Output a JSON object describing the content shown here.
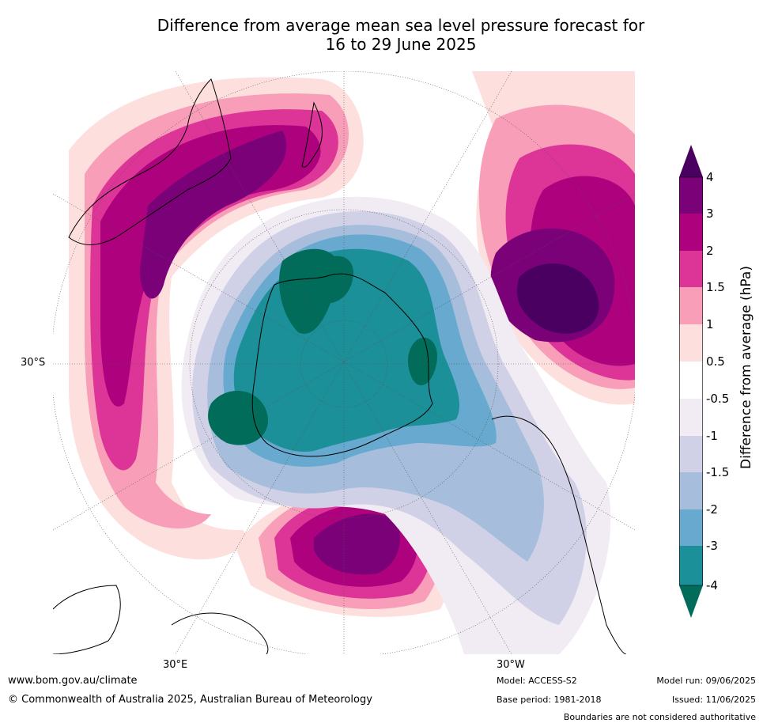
{
  "title": {
    "line1": "Difference from average mean sea level pressure forecast for",
    "line2": "16 to 29 June 2025"
  },
  "map": {
    "projection": "south polar stereographic",
    "labels": {
      "lat": "30°S",
      "lon_left": "30°E",
      "lon_right": "30°W"
    }
  },
  "legend": {
    "axis_title": "Difference from average (hPa)",
    "ticks": [
      "4",
      "3",
      "2",
      "1.5",
      "1",
      "0.5",
      "-0.5",
      "-1",
      "-1.5",
      "-2",
      "-3",
      "-4"
    ],
    "colors": {
      "gt4": "#4a0061",
      "3_4": "#7a0177",
      "2_3": "#ae017e",
      "1.5_2": "#dd3497",
      "1_1.5": "#f89eb9",
      "0.5_1": "#fde0dd",
      "neutral": "#ffffff",
      "m1_m0.5": "#f1ecf3",
      "m1.5_m1": "#d0d1e6",
      "m2_m1.5": "#a6bddb",
      "m3_m2": "#67a9cf",
      "m4_m3": "#1c9099",
      "lt_m4": "#016c59"
    }
  },
  "footer": {
    "website": "www.bom.gov.au/climate",
    "copyright": "© Commonwealth of Australia 2025, Australian Bureau of Meteorology",
    "model": "Model: ACCESS-S2",
    "base_period": "Base period: 1981-2018",
    "model_run": "Model run: 09/06/2025",
    "issued": "Issued: 11/06/2025",
    "disclaimer": "Boundaries are not considered authoritative"
  }
}
